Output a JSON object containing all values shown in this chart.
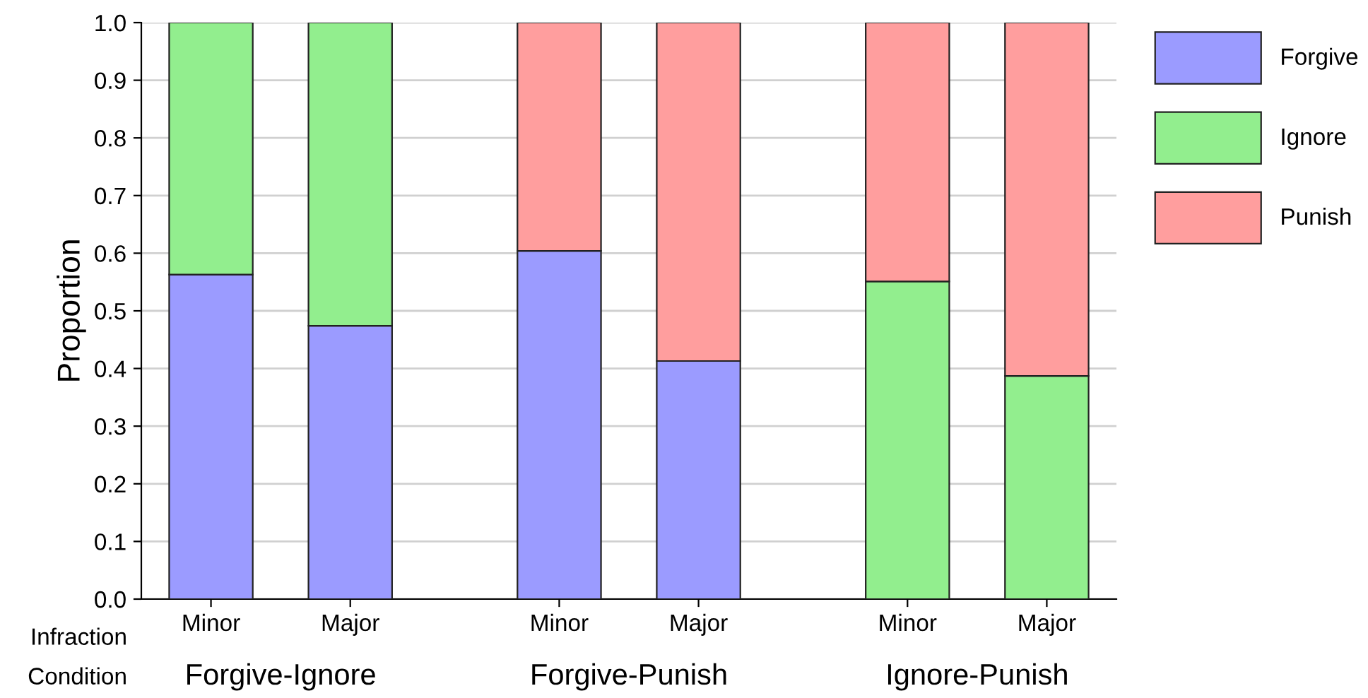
{
  "chart_data": {
    "type": "bar",
    "stacked": true,
    "ylabel": "Proportion",
    "categories": [
      "Minor",
      "Major",
      "Minor",
      "Major",
      "Minor",
      "Major"
    ],
    "series": [
      {
        "name": "Forgive",
        "color": "#9b9bff",
        "values": [
          0.563,
          0.474,
          0.604,
          0.413,
          null,
          null
        ]
      },
      {
        "name": "Ignore",
        "color": "#92ee8e",
        "values": [
          0.437,
          0.526,
          null,
          null,
          0.551,
          0.387
        ]
      },
      {
        "name": "Punish",
        "color": "#ff9e9e",
        "values": [
          null,
          null,
          0.396,
          0.587,
          0.449,
          0.613
        ]
      }
    ],
    "ylim": [
      0,
      1
    ],
    "yticks": [
      {
        "value": 0,
        "label": "0.0"
      },
      0.1,
      0.2,
      0.3,
      0.4,
      0.5,
      0.6,
      0.7,
      0.8,
      0.9,
      {
        "value": 1,
        "label": "1.0"
      }
    ],
    "grid": "y",
    "legend": "right",
    "annotations": [
      "Infraction",
      "Condition",
      "Forgive-Ignore",
      "Forgive-Punish",
      "Ignore-Punish"
    ]
  }
}
